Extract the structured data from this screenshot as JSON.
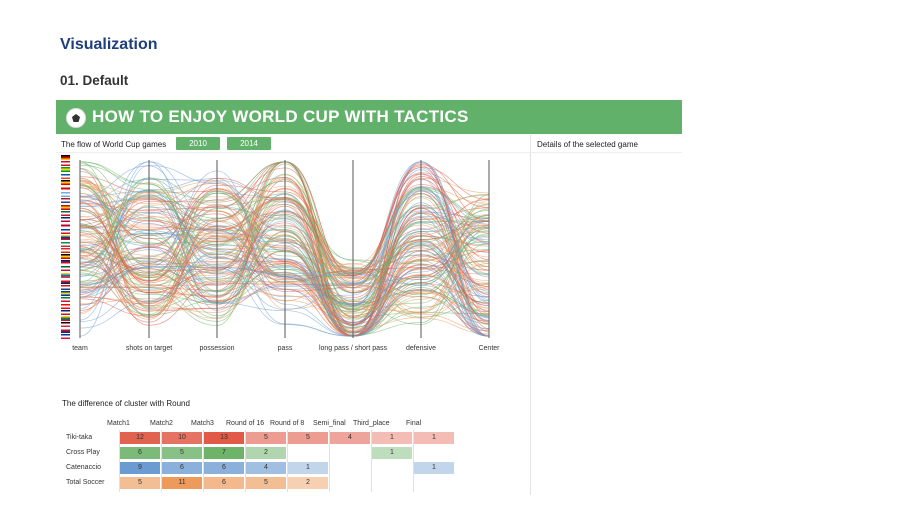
{
  "page": {
    "heading": "Visualization",
    "subheading": "01. Default"
  },
  "banner": {
    "title": "HOW TO ENJOY WORLD CUP WITH TACTICS",
    "icon": "soccer-ball-icon",
    "color": "#62b16b"
  },
  "flow": {
    "label": "The flow of World Cup games",
    "years": [
      "2010",
      "2014"
    ]
  },
  "details": {
    "label": "Details of the selected game"
  },
  "axes": [
    "team",
    "shots on target",
    "possession",
    "pass",
    "long pass / short pass",
    "defensive",
    "Center"
  ],
  "colors": {
    "Tiki-taka": "#e05a47",
    "Cross Play": "#6db36a",
    "Catenaccio": "#6b9bd0",
    "Total Soccer": "#ee9a5a"
  },
  "cluster": {
    "label": "The difference of cluster with Round",
    "rounds": [
      "Match1",
      "Match2",
      "Match3",
      "Round of 16",
      "Round of 8",
      "Semi_final",
      "Third_place",
      "Final"
    ],
    "teams": [
      {
        "name": "Tiki-taka",
        "values": [
          12,
          10,
          13,
          5,
          5,
          4,
          1,
          1
        ]
      },
      {
        "name": "Cross Play",
        "values": [
          6,
          5,
          7,
          2,
          null,
          null,
          1,
          null
        ]
      },
      {
        "name": "Catenaccio",
        "values": [
          9,
          6,
          6,
          4,
          1,
          null,
          null,
          1
        ]
      },
      {
        "name": "Total Soccer",
        "values": [
          5,
          11,
          6,
          5,
          2,
          null,
          null,
          null
        ]
      }
    ]
  }
}
